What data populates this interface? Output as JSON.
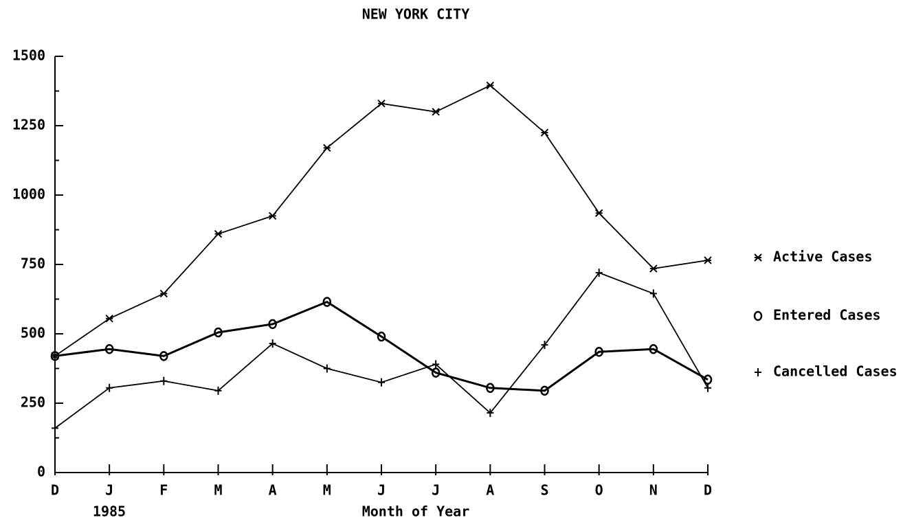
{
  "chart_data": {
    "type": "line",
    "title": "NEW YORK CITY",
    "x_label": "Month of Year",
    "annotation": "1985",
    "categories": [
      "D",
      "J",
      "F",
      "M",
      "A",
      "M",
      "J",
      "J",
      "A",
      "S",
      "O",
      "N",
      "D"
    ],
    "series": [
      {
        "name": "Active Cases",
        "color": "#000000",
        "marker": "star",
        "values": [
          420,
          555,
          645,
          860,
          925,
          1170,
          1330,
          1300,
          1395,
          1225,
          935,
          735,
          765
        ]
      },
      {
        "name": "Entered Cases",
        "color": "#000000",
        "marker": "circle",
        "values": [
          420,
          445,
          420,
          505,
          535,
          615,
          490,
          360,
          305,
          295,
          435,
          445,
          335
        ]
      },
      {
        "name": "Cancelled Cases",
        "color": "#000000",
        "marker": "plus",
        "values": [
          160,
          305,
          330,
          295,
          465,
          375,
          325,
          390,
          215,
          460,
          720,
          645,
          305
        ]
      }
    ],
    "ylim": [
      0,
      1500
    ],
    "yticks": [
      0,
      250,
      500,
      750,
      1000,
      1250,
      1500
    ],
    "grid": false,
    "legend": "right"
  }
}
